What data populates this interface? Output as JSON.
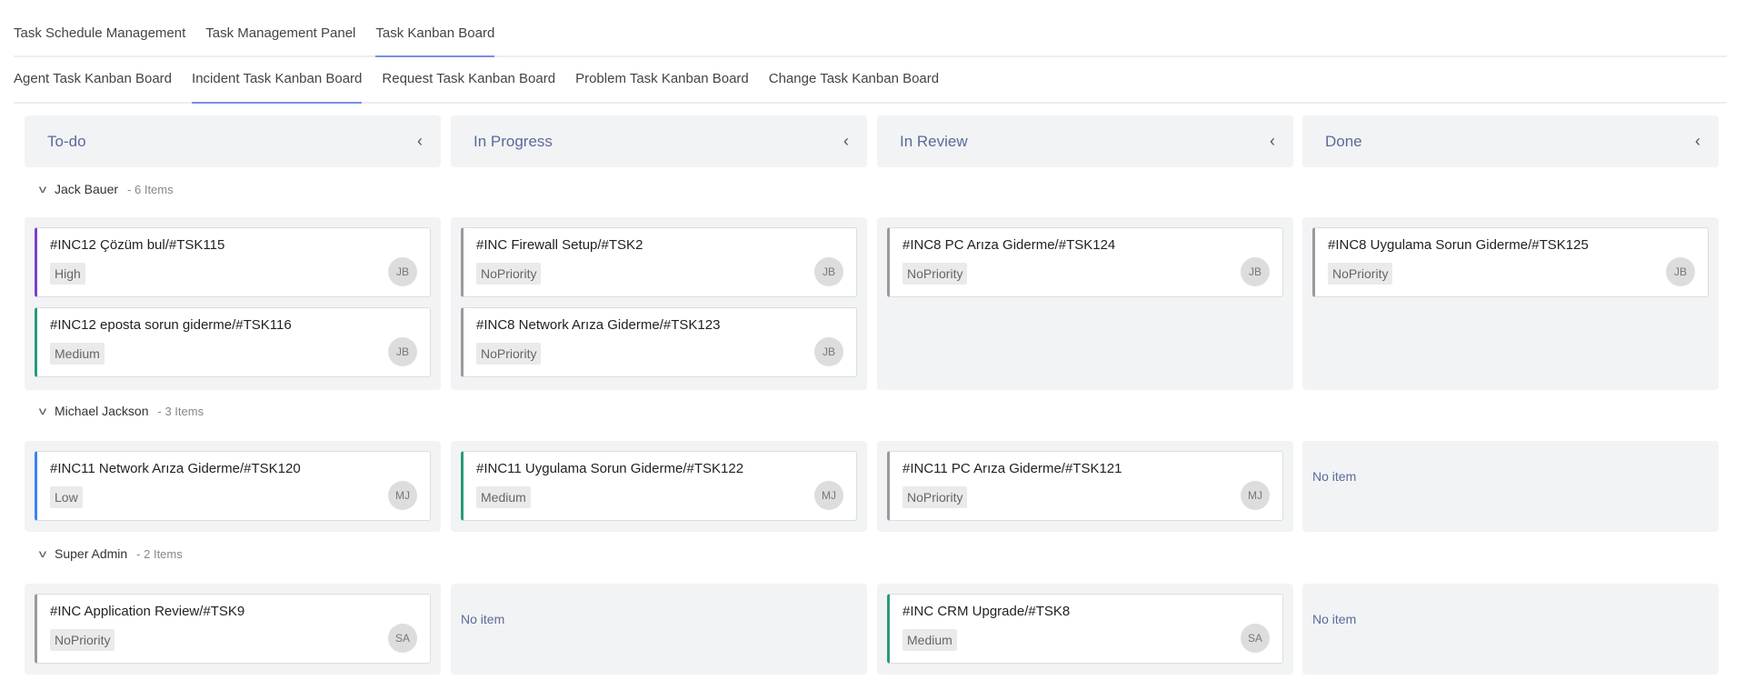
{
  "top_tabs": [
    {
      "label": "Task Schedule Management"
    },
    {
      "label": "Task Management Panel"
    },
    {
      "label": "Task Kanban Board",
      "active": true
    }
  ],
  "sub_tabs": [
    {
      "label": "Agent Task Kanban Board"
    },
    {
      "label": "Incident Task Kanban Board",
      "active": true
    },
    {
      "label": "Request Task Kanban Board"
    },
    {
      "label": "Problem Task Kanban Board"
    },
    {
      "label": "Change Task Kanban Board"
    }
  ],
  "columns": [
    {
      "title": "To-do",
      "icon": "chevron-left-icon"
    },
    {
      "title": "In Progress",
      "icon": "chevron-left-icon"
    },
    {
      "title": "In Review",
      "icon": "chevron-left-icon"
    },
    {
      "title": "Done",
      "icon": "chevron-left-icon"
    }
  ],
  "priority_colors": {
    "High": "#7b3fd0",
    "Medium": "#2a9a7a",
    "Low": "#3b82f6",
    "NoPriority": "#9a9a9a"
  },
  "no_item_label": "No item",
  "groups": [
    {
      "name": "Jack Bauer",
      "count": "- 6 Items",
      "lanes": [
        [
          {
            "title": "#INC12 Çözüm bul/#TSK115",
            "priority": "High",
            "avatar": "JB"
          },
          {
            "title": "#INC12 eposta sorun giderme/#TSK116",
            "priority": "Medium",
            "avatar": "JB"
          }
        ],
        [
          {
            "title": "#INC Firewall Setup/#TSK2",
            "priority": "NoPriority",
            "avatar": "JB"
          },
          {
            "title": "#INC8 Network Arıza Giderme/#TSK123",
            "priority": "NoPriority",
            "avatar": "JB"
          }
        ],
        [
          {
            "title": "#INC8 PC Arıza Giderme/#TSK124",
            "priority": "NoPriority",
            "avatar": "JB"
          }
        ],
        [
          {
            "title": "#INC8 Uygulama Sorun Giderme/#TSK125",
            "priority": "NoPriority",
            "avatar": "JB"
          }
        ]
      ]
    },
    {
      "name": "Michael Jackson",
      "count": "- 3 Items",
      "lanes": [
        [
          {
            "title": "#INC11 Network Arıza Giderme/#TSK120",
            "priority": "Low",
            "avatar": "MJ"
          }
        ],
        [
          {
            "title": "#INC11 Uygulama Sorun Giderme/#TSK122",
            "priority": "Medium",
            "avatar": "MJ"
          }
        ],
        [
          {
            "title": "#INC11 PC Arıza Giderme/#TSK121",
            "priority": "NoPriority",
            "avatar": "MJ"
          }
        ],
        []
      ]
    },
    {
      "name": "Super Admin",
      "count": "- 2 Items",
      "lanes": [
        [
          {
            "title": "#INC Application Review/#TSK9",
            "priority": "NoPriority",
            "avatar": "SA"
          }
        ],
        [],
        [
          {
            "title": "#INC CRM Upgrade/#TSK8",
            "priority": "Medium",
            "avatar": "SA"
          }
        ],
        []
      ]
    }
  ]
}
